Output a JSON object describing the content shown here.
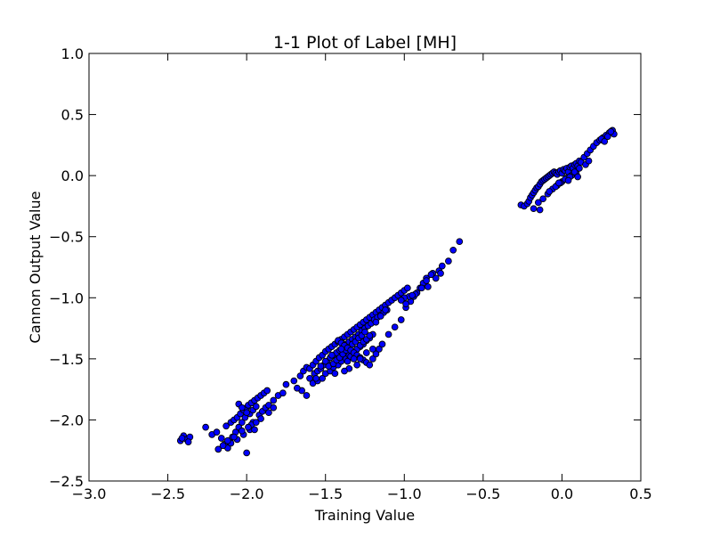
{
  "chart_data": {
    "type": "scatter",
    "title": "1-1 Plot of Label [MH]",
    "xlabel": "Training Value",
    "ylabel": "Cannon Output Value",
    "xlim": [
      -3.0,
      0.5
    ],
    "ylim": [
      -2.5,
      1.0
    ],
    "xticks": [
      -3.0,
      -2.5,
      -2.0,
      -1.5,
      -1.0,
      -0.5,
      0.0,
      0.5
    ],
    "yticks": [
      -2.5,
      -2.0,
      -1.5,
      -1.0,
      -0.5,
      0.0,
      0.5,
      1.0
    ],
    "xtick_labels": [
      "−3.0",
      "−2.5",
      "−2.0",
      "−1.5",
      "−1.0",
      "−0.5",
      "0.0",
      "0.5"
    ],
    "ytick_labels": [
      "−2.5",
      "−2.0",
      "−1.5",
      "−1.0",
      "−0.5",
      "0.0",
      "0.5",
      "1.0"
    ],
    "grid": false,
    "marker_color": "#0000ff",
    "marker_edge_color": "#000000",
    "series": [
      {
        "x": [
          -2.42,
          -2.4,
          -2.38,
          -2.36,
          -2.41,
          -2.37,
          -2.26,
          -2.22,
          -2.19,
          -2.16,
          -2.13,
          -2.1,
          -2.08,
          -2.06,
          -2.04,
          -2.02,
          -2.0,
          -1.99,
          -1.97,
          -1.95,
          -1.93,
          -1.91,
          -1.89,
          -1.87,
          -2.14,
          -2.11,
          -2.09,
          -2.07,
          -2.05,
          -2.03,
          -2.01,
          -1.98,
          -1.96,
          -1.94,
          -2.12,
          -2.1,
          -2.06,
          -2.02,
          -1.98,
          -1.96,
          -1.92,
          -1.9,
          -1.88,
          -1.86,
          -1.83,
          -1.8,
          -1.77,
          -2.05,
          -2.03,
          -2.0,
          -1.97,
          -1.95,
          -2.18,
          -2.15,
          -2.12,
          -2.08,
          -2.03,
          -1.99,
          -1.94,
          -1.91,
          -1.86,
          -1.83,
          -2.0,
          -1.75,
          -1.7,
          -1.66,
          -1.64,
          -1.62,
          -1.6,
          -1.58,
          -1.56,
          -1.54,
          -1.52,
          -1.5,
          -1.48,
          -1.46,
          -1.44,
          -1.42,
          -1.4,
          -1.38,
          -1.36,
          -1.34,
          -1.32,
          -1.3,
          -1.28,
          -1.26,
          -1.24,
          -1.22,
          -1.2,
          -1.18,
          -1.16,
          -1.14,
          -1.12,
          -1.1,
          -1.08,
          -1.06,
          -1.04,
          -1.02,
          -1.0,
          -0.98,
          -1.6,
          -1.57,
          -1.55,
          -1.53,
          -1.51,
          -1.49,
          -1.47,
          -1.45,
          -1.43,
          -1.41,
          -1.39,
          -1.37,
          -1.35,
          -1.33,
          -1.31,
          -1.29,
          -1.27,
          -1.25,
          -1.23,
          -1.21,
          -1.19,
          -1.17,
          -1.15,
          -1.13,
          -1.11,
          -1.58,
          -1.55,
          -1.52,
          -1.5,
          -1.47,
          -1.45,
          -1.42,
          -1.4,
          -1.37,
          -1.35,
          -1.33,
          -1.3,
          -1.28,
          -1.26,
          -1.24,
          -1.22,
          -1.2,
          -1.48,
          -1.45,
          -1.43,
          -1.41,
          -1.39,
          -1.37,
          -1.35,
          -1.33,
          -1.31,
          -1.29,
          -1.27,
          -1.25,
          -1.36,
          -1.34,
          -1.32,
          -1.3,
          -1.28,
          -1.26,
          -1.24,
          -1.22,
          -1.42,
          -1.4,
          -1.38,
          -1.36,
          -1.34,
          -1.32,
          -1.3,
          -1.28,
          -1.26,
          -1.24,
          -1.22,
          -1.2,
          -1.18,
          -1.16,
          -1.14,
          -1.1,
          -1.06,
          -1.02,
          -0.99,
          -0.96,
          -0.94,
          -0.92,
          -0.9,
          -0.88,
          -0.86,
          -0.82,
          -0.78,
          -0.76,
          -0.72,
          -0.69,
          -0.65,
          -0.8,
          -0.77,
          -0.85,
          -0.93,
          -0.97,
          -1.0,
          -1.02,
          -0.99,
          -0.95,
          -1.12,
          -1.15,
          -1.18,
          -1.35,
          -1.3,
          -1.32,
          -1.62,
          -1.65,
          -1.68,
          -1.56,
          -1.44,
          -1.38,
          -0.83,
          -0.86,
          -0.89,
          -1.46,
          -1.4,
          -1.5,
          -1.53,
          -1.28,
          -1.24,
          -1.2,
          -0.26,
          -0.24,
          -0.22,
          -0.21,
          -0.2,
          -0.19,
          -0.18,
          -0.17,
          -0.16,
          -0.15,
          -0.14,
          -0.13,
          -0.12,
          -0.11,
          -0.1,
          -0.09,
          -0.08,
          -0.07,
          -0.06,
          -0.05,
          -0.04,
          -0.03,
          -0.02,
          -0.01,
          0.0,
          0.01,
          0.02,
          0.03,
          0.04,
          0.05,
          0.06,
          0.07,
          0.08,
          0.09,
          0.1,
          0.11,
          0.12,
          0.14,
          0.16,
          0.18,
          0.2,
          0.22,
          0.24,
          0.26,
          0.28,
          0.3,
          0.31,
          0.32,
          0.33,
          -0.18,
          -0.15,
          -0.12,
          -0.09,
          -0.06,
          -0.03,
          0.0,
          0.03,
          0.06,
          0.09,
          -0.04,
          -0.01,
          0.02,
          0.05,
          0.08,
          0.11,
          0.15,
          0.17,
          -0.14,
          -0.08,
          -0.02,
          0.04,
          0.1,
          0.25,
          0.27,
          0.29,
          0.31
        ],
        "y": [
          -2.17,
          -2.13,
          -2.16,
          -2.14,
          -2.15,
          -2.18,
          -2.06,
          -2.12,
          -2.1,
          -2.15,
          -2.05,
          -2.02,
          -2.0,
          -1.98,
          -1.95,
          -1.92,
          -1.9,
          -1.88,
          -1.86,
          -1.84,
          -1.82,
          -1.8,
          -1.78,
          -1.76,
          -2.2,
          -2.18,
          -2.14,
          -2.1,
          -2.06,
          -2.02,
          -1.98,
          -1.95,
          -1.92,
          -1.89,
          -2.23,
          -2.19,
          -2.16,
          -2.12,
          -2.08,
          -2.02,
          -1.96,
          -1.93,
          -1.9,
          -1.88,
          -1.84,
          -1.8,
          -1.78,
          -1.87,
          -1.9,
          -1.94,
          -2.04,
          -2.08,
          -2.24,
          -2.21,
          -2.17,
          -2.14,
          -2.09,
          -2.06,
          -2.02,
          -1.99,
          -1.94,
          -1.9,
          -2.27,
          -1.71,
          -1.68,
          -1.64,
          -1.6,
          -1.57,
          -1.58,
          -1.55,
          -1.52,
          -1.49,
          -1.47,
          -1.44,
          -1.42,
          -1.4,
          -1.38,
          -1.36,
          -1.34,
          -1.32,
          -1.3,
          -1.28,
          -1.26,
          -1.24,
          -1.22,
          -1.2,
          -1.18,
          -1.16,
          -1.14,
          -1.12,
          -1.1,
          -1.08,
          -1.06,
          -1.04,
          -1.02,
          -1.0,
          -0.98,
          -0.96,
          -0.94,
          -0.92,
          -1.66,
          -1.62,
          -1.6,
          -1.58,
          -1.55,
          -1.52,
          -1.49,
          -1.47,
          -1.45,
          -1.43,
          -1.41,
          -1.38,
          -1.36,
          -1.34,
          -1.32,
          -1.3,
          -1.27,
          -1.25,
          -1.23,
          -1.21,
          -1.18,
          -1.16,
          -1.14,
          -1.12,
          -1.1,
          -1.7,
          -1.68,
          -1.66,
          -1.62,
          -1.6,
          -1.57,
          -1.55,
          -1.52,
          -1.5,
          -1.47,
          -1.44,
          -1.42,
          -1.4,
          -1.38,
          -1.35,
          -1.33,
          -1.3,
          -1.56,
          -1.54,
          -1.51,
          -1.49,
          -1.46,
          -1.43,
          -1.41,
          -1.38,
          -1.36,
          -1.33,
          -1.31,
          -1.28,
          -1.52,
          -1.48,
          -1.45,
          -1.42,
          -1.39,
          -1.36,
          -1.34,
          -1.31,
          -1.35,
          -1.37,
          -1.39,
          -1.41,
          -1.43,
          -1.45,
          -1.47,
          -1.49,
          -1.51,
          -1.53,
          -1.55,
          -1.5,
          -1.46,
          -1.42,
          -1.38,
          -1.3,
          -1.24,
          -1.18,
          -1.08,
          -1.03,
          -0.99,
          -0.96,
          -0.92,
          -0.88,
          -0.84,
          -0.8,
          -0.78,
          -0.74,
          -0.7,
          -0.61,
          -0.54,
          -0.84,
          -0.8,
          -0.91,
          -0.97,
          -0.99,
          -1.0,
          -1.02,
          -1.05,
          -0.98,
          -1.1,
          -1.15,
          -1.2,
          -1.58,
          -1.55,
          -1.5,
          -1.8,
          -1.76,
          -1.74,
          -1.66,
          -1.62,
          -1.6,
          -0.81,
          -0.86,
          -0.92,
          -1.47,
          -1.42,
          -1.52,
          -1.56,
          -1.5,
          -1.45,
          -1.42,
          -0.24,
          -0.25,
          -0.23,
          -0.21,
          -0.18,
          -0.16,
          -0.14,
          -0.12,
          -0.1,
          -0.09,
          -0.07,
          -0.05,
          -0.04,
          -0.03,
          -0.02,
          -0.01,
          0.0,
          0.01,
          0.02,
          0.03,
          0.02,
          0.01,
          0.03,
          0.04,
          0.02,
          0.05,
          0.04,
          0.06,
          0.03,
          0.07,
          0.08,
          0.06,
          0.09,
          0.1,
          0.08,
          0.12,
          0.11,
          0.15,
          0.18,
          0.21,
          0.24,
          0.27,
          0.29,
          0.31,
          0.33,
          0.35,
          0.36,
          0.37,
          0.34,
          -0.27,
          -0.22,
          -0.19,
          -0.15,
          -0.11,
          -0.08,
          -0.05,
          -0.02,
          0.0,
          0.02,
          -0.09,
          -0.06,
          -0.03,
          -0.01,
          0.03,
          0.06,
          0.09,
          0.12,
          -0.28,
          -0.13,
          -0.06,
          -0.04,
          -0.01,
          0.3,
          0.28,
          0.32,
          0.36
        ]
      }
    ]
  }
}
